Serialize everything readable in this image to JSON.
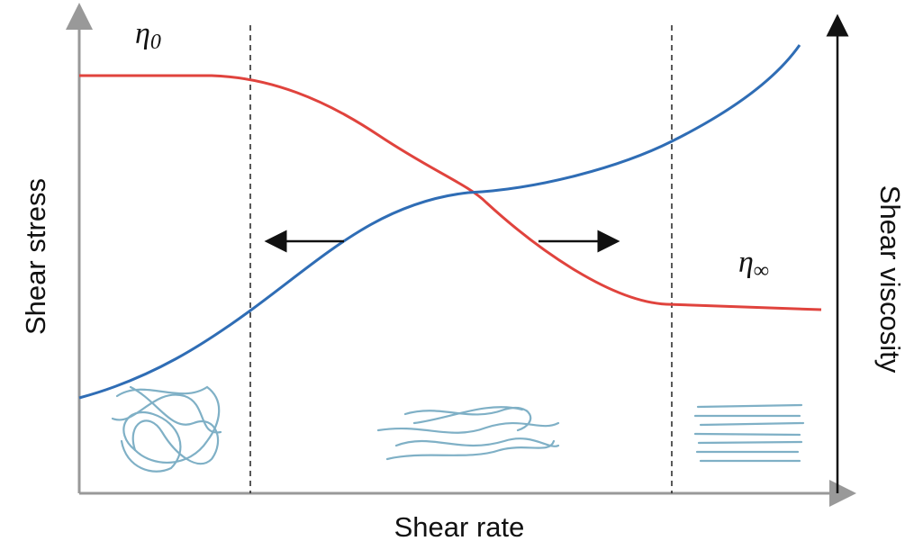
{
  "axes": {
    "x_label": "Shear rate",
    "y_left_label": "Shear stress",
    "y_right_label": "Shear viscosity"
  },
  "annotations": {
    "zero_shear": {
      "symbol": "η",
      "subscript": "0"
    },
    "infinite_shear": {
      "symbol": "η",
      "subscript": "∞"
    }
  }
}
